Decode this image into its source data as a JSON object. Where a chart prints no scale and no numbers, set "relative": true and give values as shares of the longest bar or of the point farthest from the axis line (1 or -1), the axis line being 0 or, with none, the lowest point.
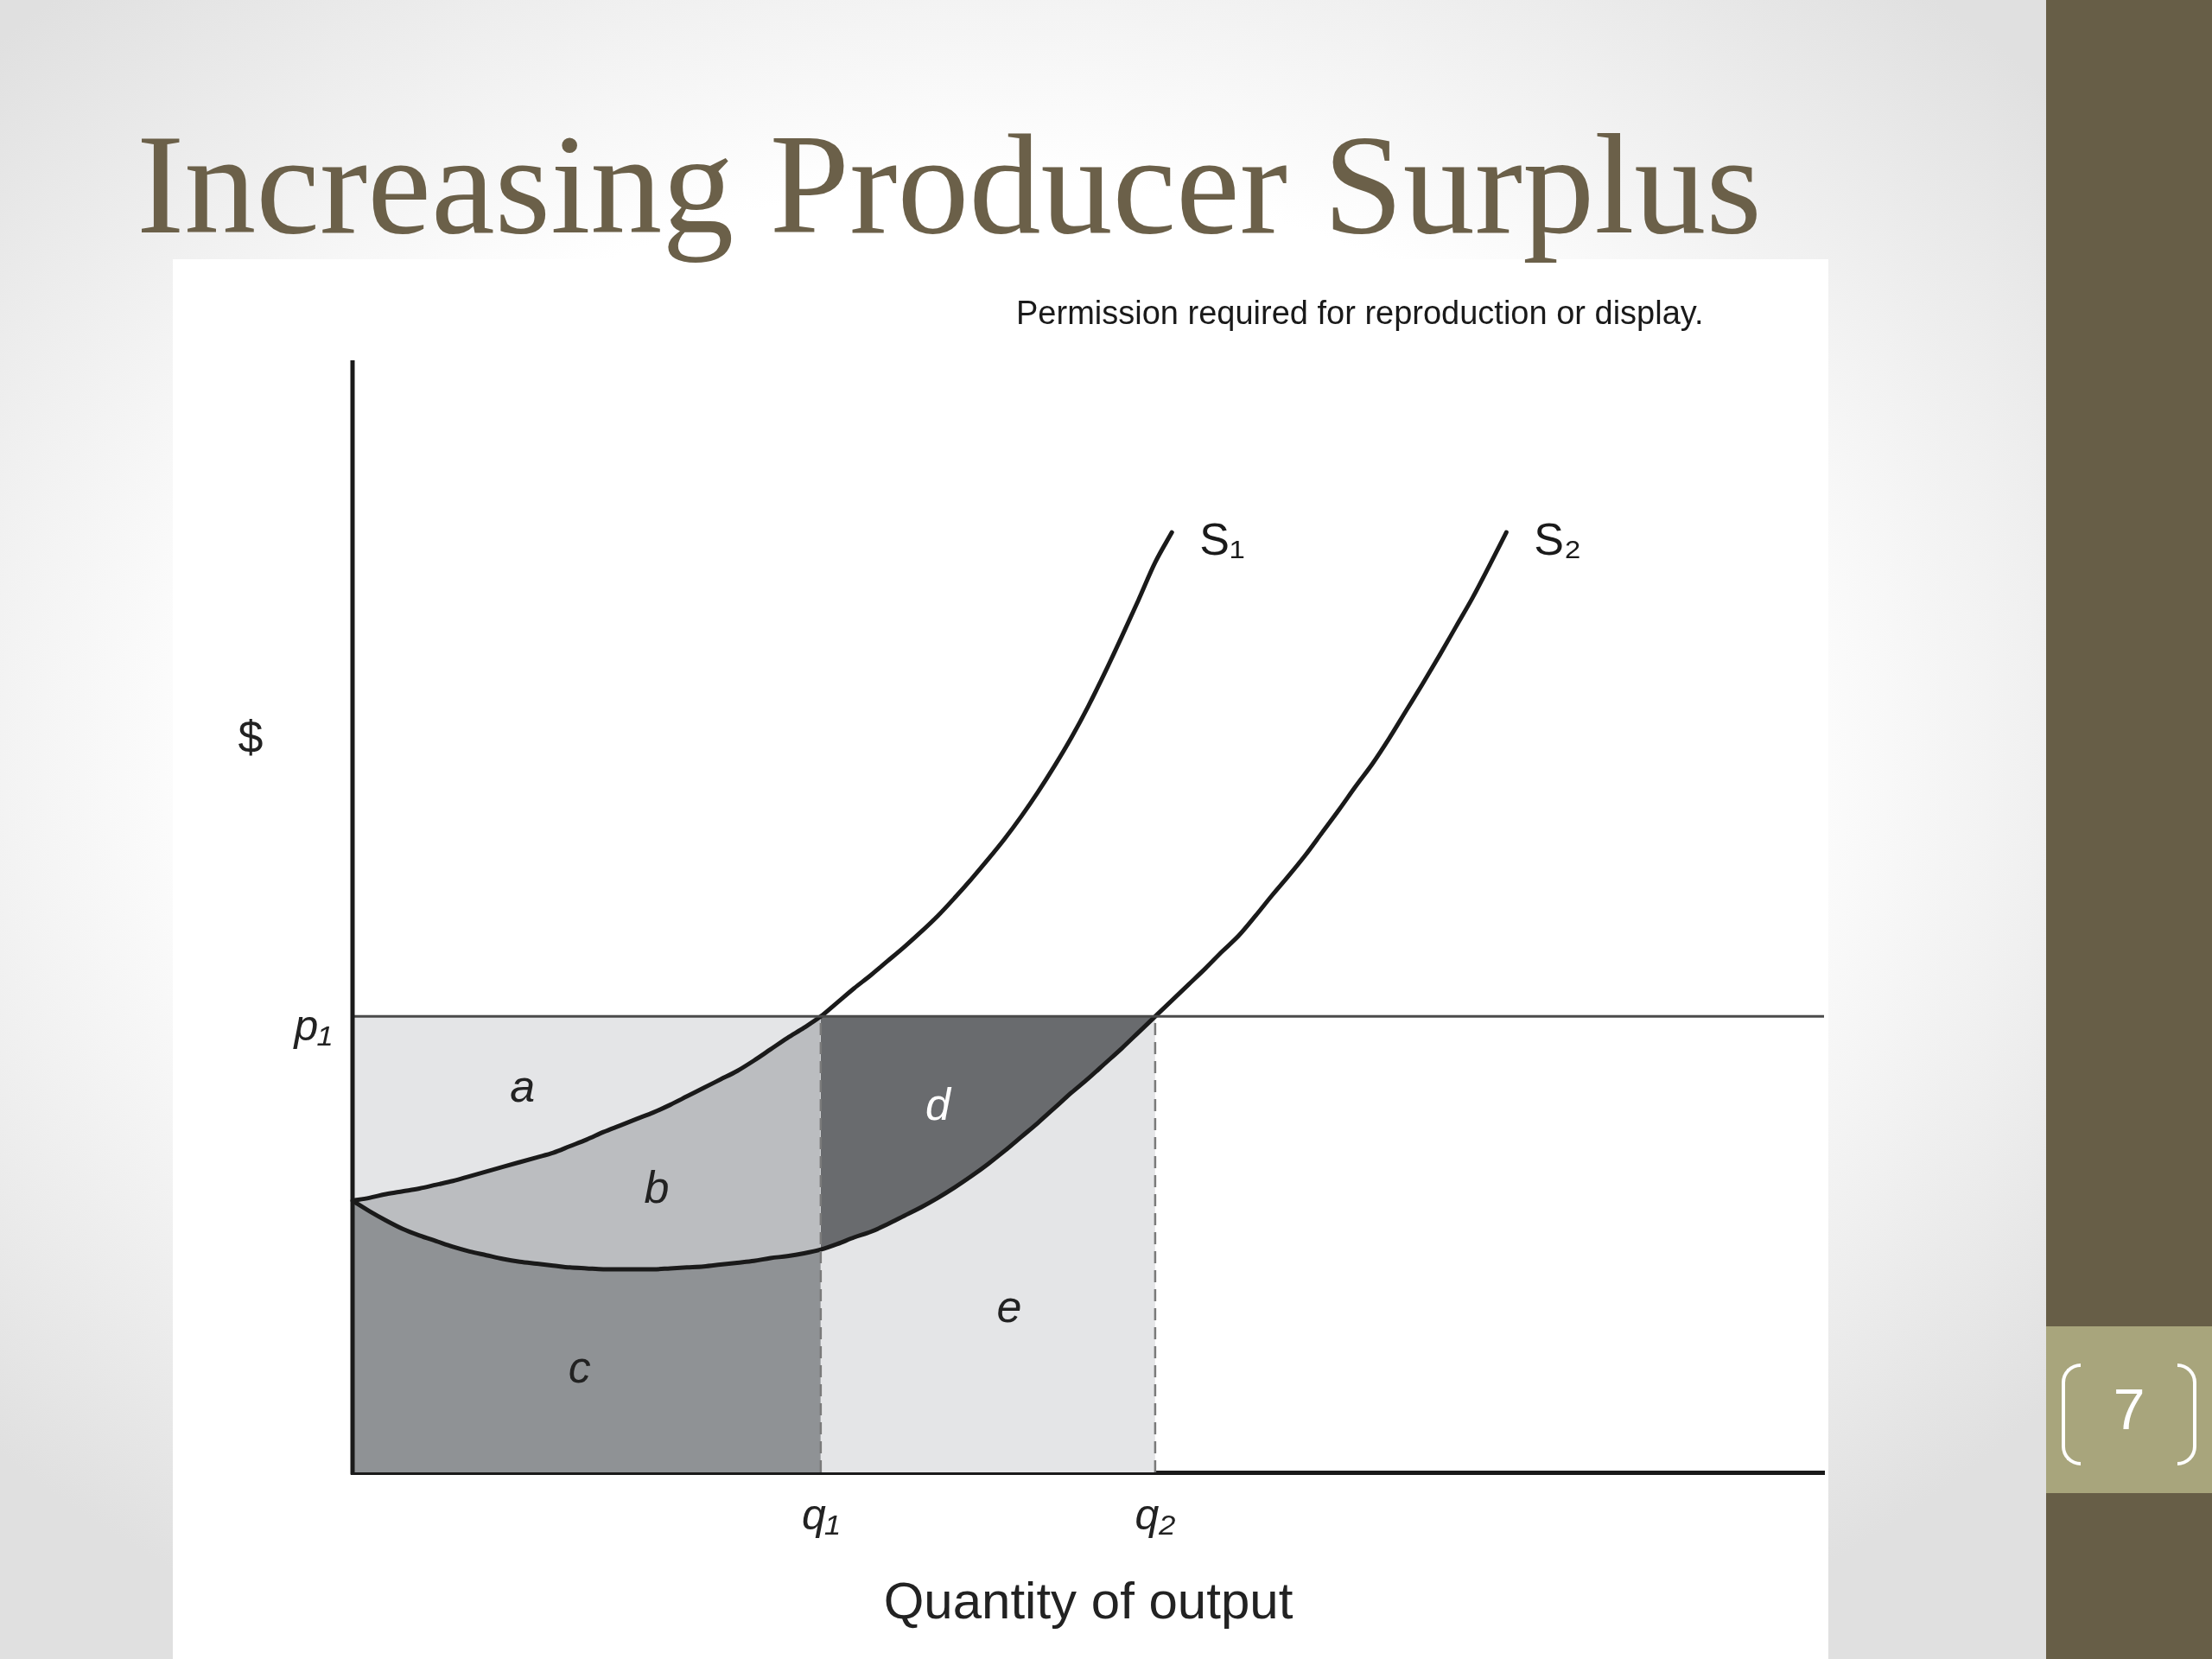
{
  "chart_data": {
    "type": "line",
    "title": "Increasing Producer Surplus",
    "xlabel": "Quantity of output",
    "ylabel": "$",
    "annotations": [
      "Permission required for reproduction or display.",
      "7"
    ],
    "relative": true,
    "categories": [
      null,
      null,
      null,
      null,
      null,
      null,
      null,
      null,
      null,
      null,
      null,
      null,
      null,
      null,
      null,
      null,
      null,
      null,
      null,
      null,
      null,
      null,
      null,
      null,
      null,
      null,
      null,
      null,
      "q₁",
      null,
      null,
      null,
      null,
      null,
      null,
      null,
      null,
      null,
      null,
      null,
      null,
      null,
      null,
      null,
      null,
      null,
      null,
      null,
      "q₂",
      null,
      null,
      null,
      null,
      null,
      null,
      null,
      null,
      null,
      null,
      null,
      null,
      null,
      null,
      null,
      null,
      null,
      null,
      null,
      null,
      null,
      null,
      null,
      null,
      null,
      null,
      null,
      null,
      null,
      null,
      null,
      null,
      null,
      null,
      null,
      null,
      null,
      null,
      null,
      null
    ],
    "ref_lines": [
      {
        "axis": "y",
        "value": 0.485,
        "label": "p₁",
        "color": "#4a4a4a"
      },
      {
        "axis": "x",
        "value": "q₁",
        "color": "#7a7a7a",
        "line_style": "dashed"
      },
      {
        "axis": "x",
        "value": "q₂",
        "color": "#7a7a7a",
        "line_style": "dashed"
      }
    ],
    "series": [
      {
        "name": "a",
        "type": "area",
        "color": "#e4e5e7",
        "values": [
          0.485,
          0.485,
          0.485,
          0.485,
          0.485,
          0.485,
          0.485,
          0.485,
          0.485,
          0.485,
          0.485,
          0.485,
          0.485,
          0.485,
          0.485,
          0.485,
          0.485,
          0.485,
          0.485,
          0.485,
          0.485,
          0.485,
          0.485,
          0.485,
          0.485,
          0.485,
          0.485,
          0.485,
          0.485,
          null,
          null,
          null,
          null,
          null,
          null,
          null,
          null,
          null,
          null,
          null,
          null,
          null,
          null,
          null,
          null,
          null,
          null,
          null,
          null,
          null,
          null,
          null,
          null,
          null,
          null,
          null,
          null,
          null,
          null,
          null,
          null,
          null,
          null,
          null,
          null,
          null,
          null,
          null,
          null,
          null,
          null,
          null,
          null,
          null,
          null,
          null,
          null,
          null,
          null,
          null,
          null,
          null,
          null,
          null,
          null,
          null,
          null,
          null,
          null
        ]
      },
      {
        "name": "b",
        "type": "area",
        "color": "#bbbdc0",
        "values": [
          0.289,
          0.292,
          0.296,
          0.299,
          0.302,
          0.306,
          0.31,
          0.315,
          0.32,
          0.325,
          0.33,
          0.335,
          0.34,
          0.347,
          0.354,
          0.362,
          0.369,
          0.376,
          0.383,
          0.391,
          0.4,
          0.409,
          0.418,
          0.427,
          0.438,
          0.45,
          0.462,
          0.473,
          0.485,
          null,
          null,
          null,
          null,
          null,
          null,
          null,
          null,
          null,
          null,
          null,
          null,
          null,
          null,
          null,
          null,
          null,
          null,
          null,
          null,
          null,
          null,
          null,
          null,
          null,
          null,
          null,
          null,
          null,
          null,
          null,
          null,
          null,
          null,
          null,
          null,
          null,
          null,
          null,
          null,
          null,
          null,
          null,
          null,
          null,
          null,
          null,
          null,
          null,
          null,
          null,
          null,
          null,
          null,
          null,
          null,
          null,
          null,
          null,
          null
        ]
      },
      {
        "name": "c",
        "type": "area",
        "color": "#8f9295",
        "values": [
          0.289,
          0.278,
          0.268,
          0.259,
          0.252,
          0.246,
          0.24,
          0.235,
          0.231,
          0.227,
          0.224,
          0.222,
          0.22,
          0.218,
          0.217,
          0.216,
          0.216,
          0.216,
          0.216,
          0.217,
          0.218,
          0.219,
          0.221,
          0.223,
          0.225,
          0.228,
          0.23,
          0.233,
          0.237,
          null,
          null,
          null,
          null,
          null,
          null,
          null,
          null,
          null,
          null,
          null,
          null,
          null,
          null,
          null,
          null,
          null,
          null,
          null,
          null,
          null,
          null,
          null,
          null,
          null,
          null,
          null,
          null,
          null,
          null,
          null,
          null,
          null,
          null,
          null,
          null,
          null,
          null,
          null,
          null,
          null,
          null,
          null,
          null,
          null,
          null,
          null,
          null,
          null,
          null,
          null,
          null,
          null,
          null,
          null,
          null,
          null,
          null,
          null,
          null
        ]
      },
      {
        "name": "d",
        "type": "area",
        "color": "#696b6e",
        "values": [
          null,
          null,
          null,
          null,
          null,
          null,
          null,
          null,
          null,
          null,
          null,
          null,
          null,
          null,
          null,
          null,
          null,
          null,
          null,
          null,
          null,
          null,
          null,
          null,
          null,
          null,
          null,
          null,
          0.485,
          0.485,
          0.485,
          0.485,
          0.485,
          0.485,
          0.485,
          0.485,
          0.485,
          0.485,
          0.485,
          0.485,
          0.485,
          0.485,
          0.485,
          0.485,
          0.485,
          0.485,
          0.485,
          0.485,
          0.485,
          null,
          null,
          null,
          null,
          null,
          null,
          null,
          null,
          null,
          null,
          null,
          null,
          null,
          null,
          null,
          null,
          null,
          null,
          null,
          null,
          null,
          null,
          null,
          null,
          null,
          null,
          null,
          null,
          null,
          null,
          null,
          null,
          null,
          null,
          null,
          null,
          null,
          null,
          null,
          null
        ]
      },
      {
        "name": "e",
        "type": "area",
        "color": "#e4e5e7",
        "values": [
          null,
          null,
          null,
          null,
          null,
          null,
          null,
          null,
          null,
          null,
          null,
          null,
          null,
          null,
          null,
          null,
          null,
          null,
          null,
          null,
          null,
          null,
          null,
          null,
          null,
          null,
          null,
          null,
          0.237,
          0.243,
          0.25,
          0.256,
          0.264,
          0.273,
          0.282,
          0.292,
          0.303,
          0.315,
          0.328,
          0.342,
          0.357,
          0.372,
          0.388,
          0.404,
          0.419,
          0.435,
          0.451,
          0.468,
          0.485,
          null,
          null,
          null,
          null,
          null,
          null,
          null,
          null,
          null,
          null,
          null,
          null,
          null,
          null,
          null,
          null,
          null,
          null,
          null,
          null,
          null,
          null,
          null,
          null,
          null,
          null,
          null,
          null,
          null,
          null,
          null,
          null,
          null,
          null,
          null,
          null,
          null,
          null,
          null,
          null
        ]
      },
      {
        "name": "S₁",
        "color": "#1a1a1a",
        "values": [
          0.289,
          0.292,
          0.296,
          0.299,
          0.302,
          0.306,
          0.31,
          0.315,
          0.32,
          0.325,
          0.33,
          0.335,
          0.34,
          0.347,
          0.354,
          0.362,
          0.369,
          0.376,
          0.383,
          0.391,
          0.4,
          0.409,
          0.418,
          0.427,
          0.438,
          0.45,
          0.462,
          0.473,
          0.485,
          0.5,
          0.515,
          0.529,
          0.544,
          0.559,
          0.575,
          0.592,
          0.611,
          0.631,
          0.652,
          0.674,
          0.698,
          0.724,
          0.752,
          0.782,
          0.815,
          0.851,
          0.889,
          0.928,
          0.968,
          1.0,
          null,
          null,
          null,
          null,
          null,
          null,
          null,
          null,
          null,
          null,
          null,
          null,
          null,
          null,
          null,
          null,
          null,
          null,
          null,
          null,
          null,
          null,
          null,
          null,
          null,
          null,
          null,
          null,
          null,
          null,
          null,
          null,
          null,
          null,
          null,
          null,
          null,
          null,
          null
        ]
      },
      {
        "name": "S₂",
        "color": "#1a1a1a",
        "values": [
          0.289,
          0.278,
          0.268,
          0.259,
          0.252,
          0.246,
          0.24,
          0.235,
          0.231,
          0.227,
          0.224,
          0.222,
          0.22,
          0.218,
          0.217,
          0.216,
          0.216,
          0.216,
          0.216,
          0.217,
          0.218,
          0.219,
          0.221,
          0.223,
          0.225,
          0.228,
          0.23,
          0.233,
          0.237,
          0.243,
          0.25,
          0.256,
          0.264,
          0.273,
          0.282,
          0.292,
          0.303,
          0.315,
          0.328,
          0.342,
          0.357,
          0.372,
          0.388,
          0.404,
          0.419,
          0.435,
          0.451,
          0.468,
          0.485,
          0.502,
          0.519,
          0.536,
          0.554,
          0.571,
          0.592,
          0.614,
          0.635,
          0.657,
          0.681,
          0.705,
          0.73,
          0.754,
          0.781,
          0.81,
          0.839,
          0.869,
          0.9,
          0.931,
          0.965,
          1.0,
          null,
          null,
          null,
          null,
          null,
          null,
          null,
          null,
          null,
          null,
          null,
          null,
          null,
          null,
          null,
          null,
          null,
          null,
          null
        ]
      }
    ]
  }
}
